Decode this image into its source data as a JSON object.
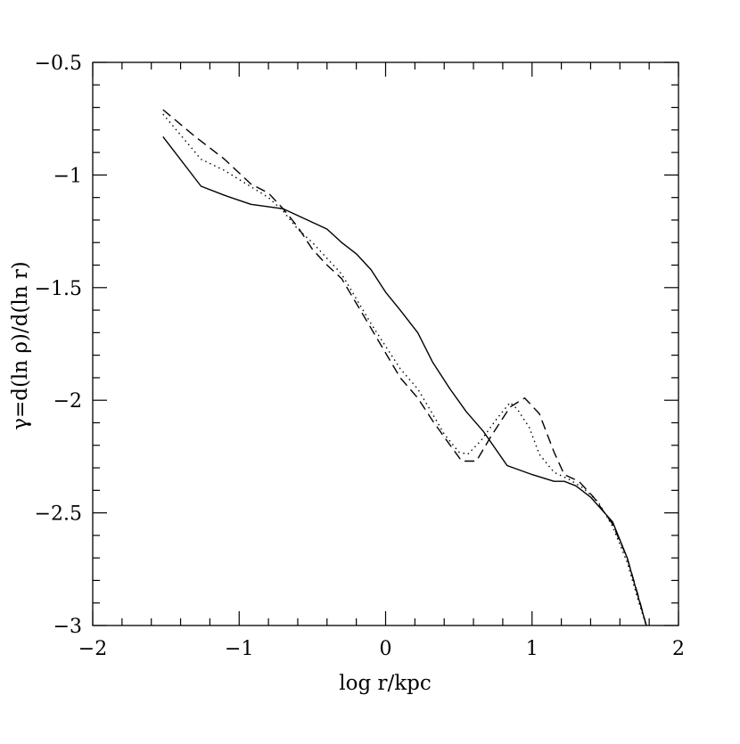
{
  "chart_data": {
    "type": "line",
    "title": "",
    "xlabel": "log r/kpc",
    "ylabel": "γ=d(ln ρ)/d(ln r)",
    "xlim": [
      -2,
      2
    ],
    "ylim": [
      -3,
      -0.5
    ],
    "grid": false,
    "legend": "none",
    "x_tick_labels": [
      "−2",
      "−1",
      "0",
      "1",
      "2"
    ],
    "x_tick_values": [
      -2,
      -1,
      0,
      1,
      2
    ],
    "y_tick_labels": [
      "−3",
      "−2.5",
      "−2",
      "−1.5",
      "−1",
      "−0.5"
    ],
    "y_tick_values": [
      -3,
      -2.5,
      -2,
      -1.5,
      -1,
      -0.5
    ],
    "series": [
      {
        "style": "solid",
        "color": "#000000",
        "points": [
          [
            -1.52,
            -0.83
          ],
          [
            -1.26,
            -1.05
          ],
          [
            -1.1,
            -1.09
          ],
          [
            -0.92,
            -1.13
          ],
          [
            -0.7,
            -1.15
          ],
          [
            -0.6,
            -1.18
          ],
          [
            -0.5,
            -1.21
          ],
          [
            -0.4,
            -1.24
          ],
          [
            -0.3,
            -1.3
          ],
          [
            -0.2,
            -1.35
          ],
          [
            -0.1,
            -1.42
          ],
          [
            0.0,
            -1.52
          ],
          [
            0.1,
            -1.6
          ],
          [
            0.22,
            -1.7
          ],
          [
            0.32,
            -1.83
          ],
          [
            0.44,
            -1.95
          ],
          [
            0.55,
            -2.05
          ],
          [
            0.67,
            -2.14
          ],
          [
            0.83,
            -2.29
          ],
          [
            1.0,
            -2.33
          ],
          [
            1.15,
            -2.36
          ],
          [
            1.22,
            -2.36
          ],
          [
            1.3,
            -2.38
          ],
          [
            1.4,
            -2.43
          ],
          [
            1.55,
            -2.54
          ],
          [
            1.65,
            -2.7
          ],
          [
            1.75,
            -2.93
          ],
          [
            1.78,
            -3.0
          ]
        ]
      },
      {
        "style": "dotted",
        "color": "#000000",
        "points": [
          [
            -1.52,
            -0.73
          ],
          [
            -1.26,
            -0.93
          ],
          [
            -1.1,
            -0.98
          ],
          [
            -0.9,
            -1.06
          ],
          [
            -0.8,
            -1.1
          ],
          [
            -0.7,
            -1.16
          ],
          [
            -0.6,
            -1.24
          ],
          [
            -0.5,
            -1.3
          ],
          [
            -0.3,
            -1.44
          ],
          [
            -0.2,
            -1.55
          ],
          [
            -0.1,
            -1.66
          ],
          [
            0.0,
            -1.76
          ],
          [
            0.1,
            -1.86
          ],
          [
            0.22,
            -1.95
          ],
          [
            0.32,
            -2.06
          ],
          [
            0.4,
            -2.15
          ],
          [
            0.5,
            -2.23
          ],
          [
            0.56,
            -2.24
          ],
          [
            0.65,
            -2.18
          ],
          [
            0.75,
            -2.09
          ],
          [
            0.85,
            -2.01
          ],
          [
            0.9,
            -2.04
          ],
          [
            0.98,
            -2.12
          ],
          [
            1.05,
            -2.24
          ],
          [
            1.15,
            -2.32
          ],
          [
            1.25,
            -2.35
          ],
          [
            1.35,
            -2.39
          ],
          [
            1.45,
            -2.45
          ],
          [
            1.55,
            -2.56
          ],
          [
            1.65,
            -2.72
          ],
          [
            1.73,
            -2.9
          ],
          [
            1.78,
            -3.0
          ]
        ]
      },
      {
        "style": "dashed",
        "color": "#000000",
        "points": [
          [
            -1.52,
            -0.71
          ],
          [
            -1.3,
            -0.83
          ],
          [
            -1.1,
            -0.93
          ],
          [
            -0.92,
            -1.04
          ],
          [
            -0.8,
            -1.08
          ],
          [
            -0.7,
            -1.15
          ],
          [
            -0.6,
            -1.23
          ],
          [
            -0.5,
            -1.33
          ],
          [
            -0.4,
            -1.4
          ],
          [
            -0.3,
            -1.46
          ],
          [
            -0.2,
            -1.57
          ],
          [
            -0.1,
            -1.68
          ],
          [
            0.0,
            -1.79
          ],
          [
            0.1,
            -1.9
          ],
          [
            0.22,
            -1.99
          ],
          [
            0.32,
            -2.09
          ],
          [
            0.43,
            -2.19
          ],
          [
            0.52,
            -2.27
          ],
          [
            0.62,
            -2.27
          ],
          [
            0.72,
            -2.16
          ],
          [
            0.85,
            -2.03
          ],
          [
            0.95,
            -1.99
          ],
          [
            1.05,
            -2.06
          ],
          [
            1.15,
            -2.23
          ],
          [
            1.22,
            -2.33
          ],
          [
            1.32,
            -2.36
          ],
          [
            1.42,
            -2.43
          ],
          [
            1.55,
            -2.55
          ],
          [
            1.65,
            -2.7
          ],
          [
            1.73,
            -2.88
          ],
          [
            1.78,
            -3.0
          ]
        ]
      }
    ]
  }
}
